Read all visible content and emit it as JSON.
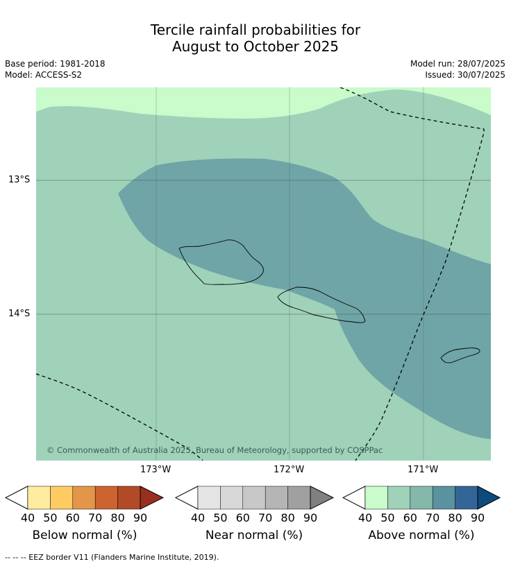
{
  "title": {
    "line1": "Tercile rainfall probabilities for",
    "line2": "August to October 2025"
  },
  "meta": {
    "base_period": "Base period: 1981-2018",
    "model": "Model: ACCESS-S2",
    "model_run": "Model run: 28/07/2025",
    "issued": "Issued: 30/07/2025"
  },
  "map": {
    "copyright": "© Commonwealth of Australia 2025, Bureau of Meteorology, supported by COSPPac",
    "lat_labels": [
      "13°S",
      "14°S"
    ],
    "lon_labels": [
      "173°W",
      "172°W",
      "171°W"
    ],
    "colors": {
      "above_40_50": "#c9fbcb",
      "above_50_60": "#9fd2b9",
      "above_60_70": "#85b8aa",
      "above_70_80": "#6fa5a6",
      "eez": "#000000"
    }
  },
  "legend": {
    "ticks": [
      "40",
      "50",
      "60",
      "70",
      "80",
      "90"
    ],
    "below": {
      "label": "Below normal (%)",
      "colors": [
        "#ffeca0",
        "#fecb63",
        "#e3954a",
        "#cd6331",
        "#b24a28",
        "#9a2f1f"
      ]
    },
    "near": {
      "label": "Near normal (%)",
      "colors": [
        "#e5e5e5",
        "#d8d8d8",
        "#c8c8c8",
        "#b5b5b5",
        "#a0a0a0",
        "#808080"
      ]
    },
    "above": {
      "label": "Above normal (%)",
      "colors": [
        "#c9fbcb",
        "#9fd2b9",
        "#85b8aa",
        "#5b92a0",
        "#336697",
        "#0e4a7e"
      ]
    }
  },
  "footer": "--  --  -- EEZ border V11 (Flanders Marine Institute, 2019)."
}
